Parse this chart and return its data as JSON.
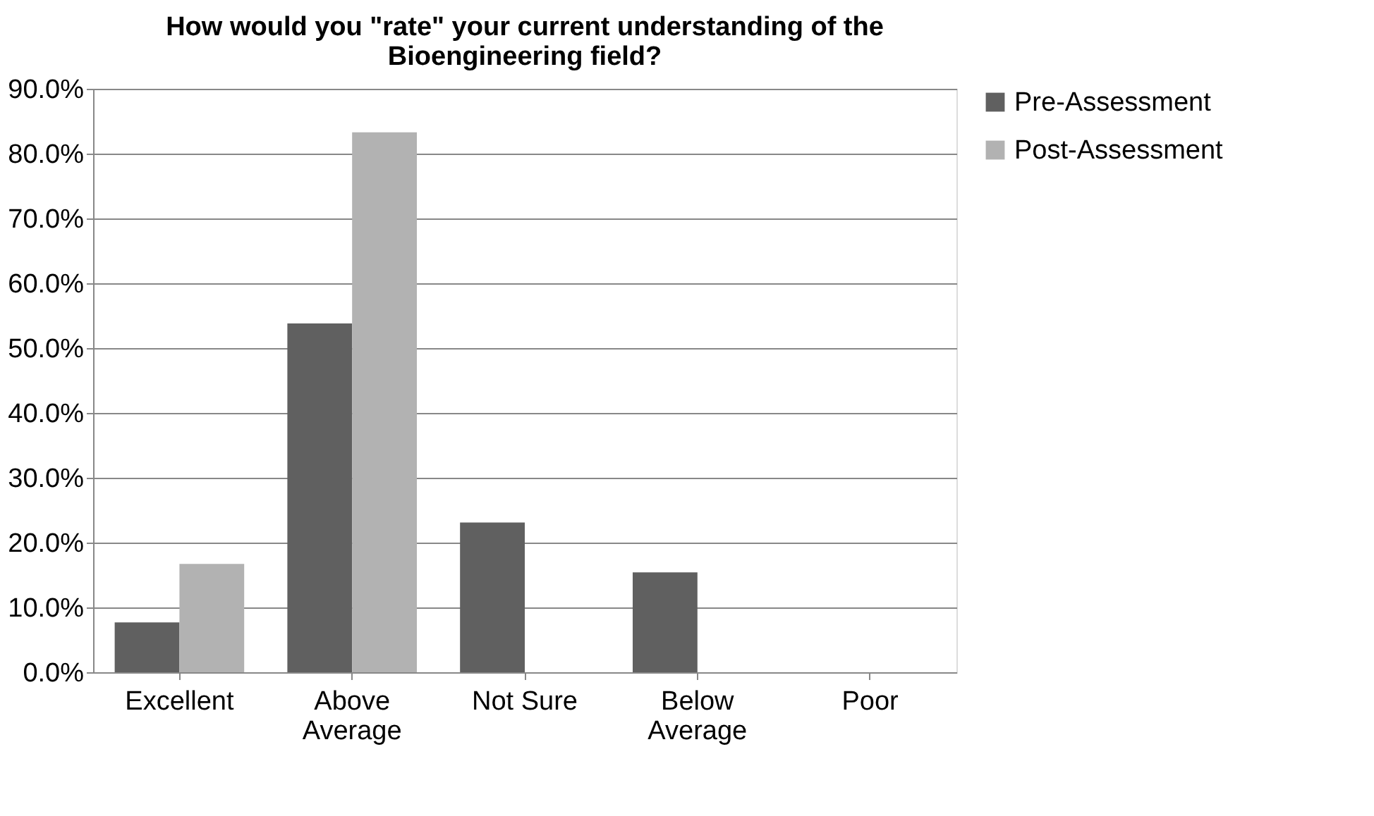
{
  "chart_data": {
    "type": "bar",
    "title": "How would you \"rate\" your current understanding of the Bioengineering field?",
    "categories": [
      "Excellent",
      "Above Average",
      "Not Sure",
      "Below Average",
      "Poor"
    ],
    "series": [
      {
        "name": "Pre-Assessment",
        "color": "#606060",
        "values": [
          7.7,
          53.8,
          23.1,
          15.4,
          0
        ]
      },
      {
        "name": "Post-Assessment",
        "color": "#b2b2b2",
        "values": [
          16.7,
          83.3,
          0,
          0,
          0
        ]
      }
    ],
    "ylim": [
      0,
      90
    ],
    "yticks": [
      {
        "value": 0,
        "label": "0.0%"
      },
      {
        "value": 10,
        "label": "10.0%"
      },
      {
        "value": 20,
        "label": "20.0%"
      },
      {
        "value": 30,
        "label": "30.0%"
      },
      {
        "value": 40,
        "label": "40.0%"
      },
      {
        "value": 50,
        "label": "50.0%"
      },
      {
        "value": 60,
        "label": "60.0%"
      },
      {
        "value": 70,
        "label": "70.0%"
      },
      {
        "value": 80,
        "label": "80.0%"
      },
      {
        "value": 90,
        "label": "90.0%"
      }
    ],
    "grid": "y",
    "legend": "right"
  }
}
